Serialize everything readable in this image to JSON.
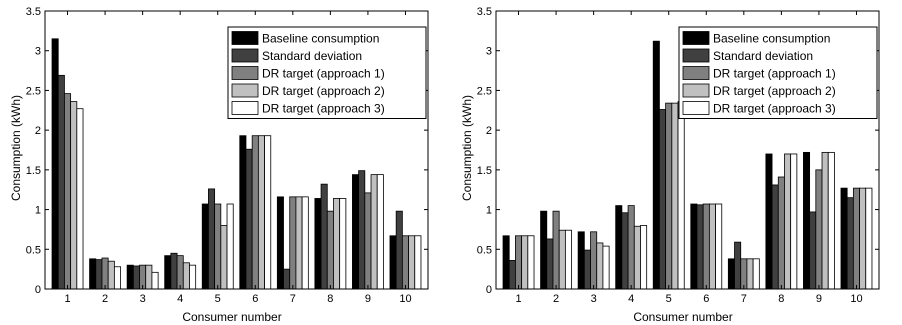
{
  "chart_data": [
    {
      "type": "bar",
      "title": "",
      "xlabel": "Consumer number",
      "ylabel": "Consumption (kWh)",
      "ylim": [
        0,
        3.5
      ],
      "yticks": [
        "0",
        "0.5",
        "1",
        "1.5",
        "2",
        "2.5",
        "3",
        "3.5"
      ],
      "categories": [
        "1",
        "2",
        "3",
        "4",
        "5",
        "6",
        "7",
        "8",
        "9",
        "10"
      ],
      "legend_position": "top-right",
      "series": [
        {
          "name": "Baseline consumption",
          "color": "#000000",
          "values": [
            3.15,
            0.38,
            0.3,
            0.42,
            1.07,
            1.93,
            1.16,
            1.14,
            1.44,
            0.67
          ]
        },
        {
          "name": "Standard deviation",
          "color": "#404040",
          "values": [
            2.69,
            0.37,
            0.29,
            0.45,
            1.26,
            1.76,
            0.25,
            1.32,
            1.49,
            0.98
          ]
        },
        {
          "name": "DR target (approach 1)",
          "color": "#808080",
          "values": [
            2.46,
            0.39,
            0.3,
            0.42,
            1.07,
            1.93,
            1.16,
            0.98,
            1.21,
            0.67
          ]
        },
        {
          "name": "DR target (approach 2)",
          "color": "#c0c0c0",
          "values": [
            2.36,
            0.35,
            0.3,
            0.33,
            0.8,
            1.93,
            1.16,
            1.14,
            1.44,
            0.67
          ]
        },
        {
          "name": "DR target (approach 3)",
          "color": "#ffffff",
          "values": [
            2.27,
            0.28,
            0.21,
            0.3,
            1.07,
            1.93,
            1.16,
            1.14,
            1.44,
            0.67
          ]
        }
      ]
    },
    {
      "type": "bar",
      "title": "",
      "xlabel": "Consumer number",
      "ylabel": "Consumption (kWh)",
      "ylim": [
        0,
        3.5
      ],
      "yticks": [
        "0",
        "0.5",
        "1",
        "1.5",
        "2",
        "2.5",
        "3",
        "3.5"
      ],
      "categories": [
        "1",
        "2",
        "3",
        "4",
        "5",
        "6",
        "7",
        "8",
        "9",
        "10"
      ],
      "legend_position": "top-right",
      "series": [
        {
          "name": "Baseline consumption",
          "color": "#000000",
          "values": [
            0.67,
            0.98,
            0.72,
            1.05,
            3.12,
            1.07,
            0.38,
            1.7,
            1.72,
            1.27
          ]
        },
        {
          "name": "Standard deviation",
          "color": "#404040",
          "values": [
            0.36,
            0.63,
            0.49,
            0.96,
            2.26,
            1.06,
            0.59,
            1.31,
            0.97,
            1.15
          ]
        },
        {
          "name": "DR target (approach 1)",
          "color": "#808080",
          "values": [
            0.67,
            0.98,
            0.72,
            1.05,
            2.34,
            1.07,
            0.38,
            1.41,
            1.5,
            1.27
          ]
        },
        {
          "name": "DR target (approach 2)",
          "color": "#c0c0c0",
          "values": [
            0.67,
            0.74,
            0.58,
            0.79,
            2.34,
            1.07,
            0.38,
            1.7,
            1.72,
            1.27
          ]
        },
        {
          "name": "DR target (approach 3)",
          "color": "#ffffff",
          "values": [
            0.67,
            0.74,
            0.54,
            0.8,
            2.36,
            1.07,
            0.38,
            1.7,
            1.72,
            1.27
          ]
        }
      ]
    }
  ]
}
